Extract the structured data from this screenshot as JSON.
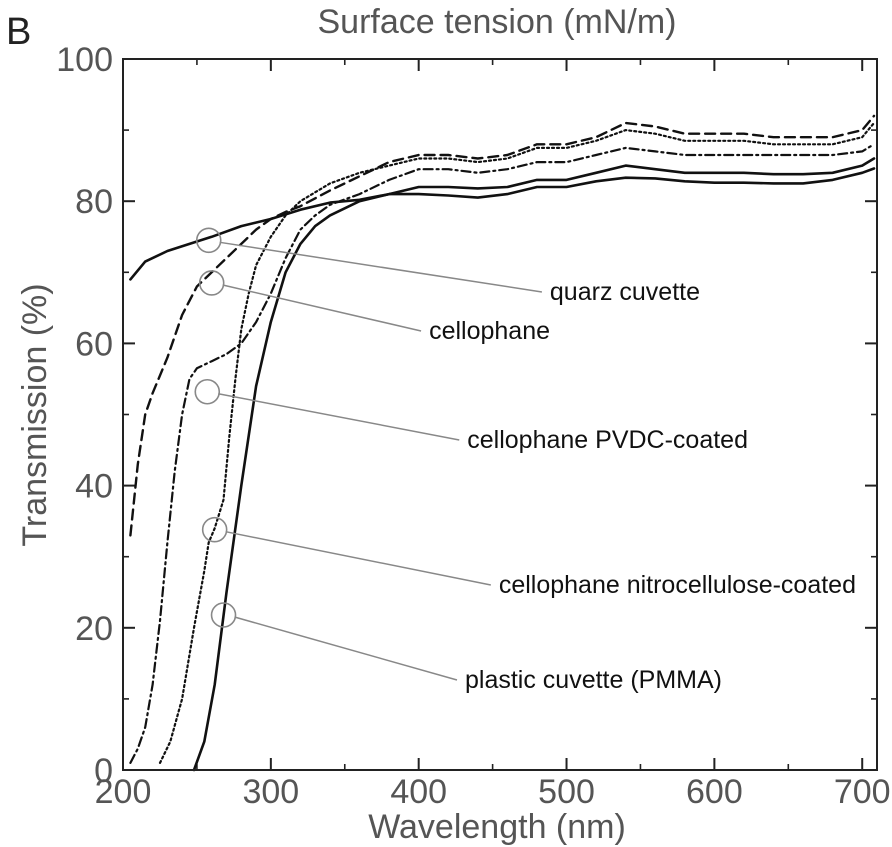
{
  "chart_data": {
    "type": "line",
    "panel_letter": "B",
    "title": "Surface tension (mN/m)",
    "xlabel": "Wavelength (nm)",
    "ylabel": "Transmission (%)",
    "xlim": [
      200,
      710
    ],
    "ylim": [
      0,
      100
    ],
    "x_ticks": [
      200,
      300,
      400,
      500,
      600,
      700
    ],
    "y_ticks": [
      0,
      20,
      40,
      60,
      80,
      100
    ],
    "grid": false,
    "series": [
      {
        "name": "quarz cuvette",
        "style": "solid",
        "stroke_width": 2.6,
        "points": [
          [
            205,
            69
          ],
          [
            215,
            71.5
          ],
          [
            230,
            73
          ],
          [
            245,
            74
          ],
          [
            260,
            75
          ],
          [
            280,
            76.5
          ],
          [
            300,
            77.5
          ],
          [
            320,
            78.8
          ],
          [
            340,
            79.8
          ],
          [
            360,
            80.2
          ],
          [
            380,
            81
          ],
          [
            400,
            81
          ],
          [
            420,
            80.8
          ],
          [
            440,
            80.5
          ],
          [
            460,
            81
          ],
          [
            480,
            82
          ],
          [
            500,
            82
          ],
          [
            520,
            82.8
          ],
          [
            540,
            83.3
          ],
          [
            560,
            83.2
          ],
          [
            580,
            82.8
          ],
          [
            600,
            82.6
          ],
          [
            620,
            82.6
          ],
          [
            640,
            82.5
          ],
          [
            660,
            82.5
          ],
          [
            680,
            83
          ],
          [
            700,
            84
          ],
          [
            708,
            84.6
          ]
        ]
      },
      {
        "name": "cellophane",
        "style": "dashed",
        "stroke_width": 2.4,
        "points": [
          [
            205,
            33
          ],
          [
            210,
            43
          ],
          [
            215,
            50
          ],
          [
            220,
            53
          ],
          [
            230,
            58
          ],
          [
            240,
            64
          ],
          [
            250,
            68
          ],
          [
            260,
            70
          ],
          [
            270,
            72
          ],
          [
            280,
            74
          ],
          [
            290,
            76
          ],
          [
            300,
            77.5
          ],
          [
            310,
            78.5
          ],
          [
            320,
            79.3
          ],
          [
            340,
            81.5
          ],
          [
            360,
            83.5
          ],
          [
            380,
            85.5
          ],
          [
            400,
            86.5
          ],
          [
            420,
            86.5
          ],
          [
            440,
            86
          ],
          [
            460,
            86.5
          ],
          [
            480,
            88
          ],
          [
            500,
            88
          ],
          [
            520,
            89
          ],
          [
            540,
            91
          ],
          [
            560,
            90.5
          ],
          [
            580,
            89.5
          ],
          [
            600,
            89.5
          ],
          [
            620,
            89.5
          ],
          [
            640,
            89
          ],
          [
            660,
            89
          ],
          [
            680,
            89
          ],
          [
            700,
            90
          ],
          [
            708,
            92
          ]
        ]
      },
      {
        "name": "cellophane PVDC-coated",
        "style": "dashdot",
        "stroke_width": 2.2,
        "points": [
          [
            205,
            1
          ],
          [
            210,
            3
          ],
          [
            215,
            6
          ],
          [
            220,
            12
          ],
          [
            225,
            21
          ],
          [
            230,
            32
          ],
          [
            235,
            42
          ],
          [
            240,
            50
          ],
          [
            245,
            55
          ],
          [
            250,
            56.5
          ],
          [
            260,
            57.5
          ],
          [
            270,
            58.5
          ],
          [
            280,
            60
          ],
          [
            290,
            63
          ],
          [
            300,
            67
          ],
          [
            310,
            72
          ],
          [
            320,
            76
          ],
          [
            330,
            78
          ],
          [
            340,
            79.5
          ],
          [
            360,
            81
          ],
          [
            380,
            83
          ],
          [
            400,
            84.5
          ],
          [
            420,
            84.5
          ],
          [
            440,
            84
          ],
          [
            460,
            84.5
          ],
          [
            480,
            85.5
          ],
          [
            500,
            85.5
          ],
          [
            520,
            86.5
          ],
          [
            540,
            87.5
          ],
          [
            560,
            87
          ],
          [
            580,
            86.5
          ],
          [
            600,
            86.5
          ],
          [
            620,
            86.5
          ],
          [
            640,
            86.5
          ],
          [
            660,
            86.5
          ],
          [
            680,
            86.5
          ],
          [
            700,
            87
          ],
          [
            708,
            88
          ]
        ]
      },
      {
        "name": "cellophane nitrocellulose-coated",
        "style": "dotted",
        "stroke_width": 2.2,
        "points": [
          [
            225,
            1
          ],
          [
            232,
            4
          ],
          [
            240,
            10
          ],
          [
            248,
            20
          ],
          [
            255,
            28
          ],
          [
            258,
            32
          ],
          [
            262,
            34
          ],
          [
            268,
            38
          ],
          [
            272,
            47
          ],
          [
            276,
            55
          ],
          [
            280,
            62
          ],
          [
            285,
            67
          ],
          [
            290,
            71
          ],
          [
            300,
            75
          ],
          [
            310,
            78
          ],
          [
            320,
            80
          ],
          [
            340,
            82.5
          ],
          [
            360,
            84
          ],
          [
            380,
            85
          ],
          [
            400,
            86
          ],
          [
            420,
            86
          ],
          [
            440,
            85.5
          ],
          [
            460,
            86
          ],
          [
            480,
            87.5
          ],
          [
            500,
            87.5
          ],
          [
            520,
            88.5
          ],
          [
            540,
            90
          ],
          [
            560,
            89.5
          ],
          [
            580,
            88.5
          ],
          [
            600,
            88.5
          ],
          [
            620,
            88.5
          ],
          [
            640,
            88
          ],
          [
            660,
            88
          ],
          [
            680,
            88
          ],
          [
            700,
            89
          ],
          [
            708,
            91
          ]
        ]
      },
      {
        "name": "plastic cuvette (PMMA)",
        "style": "solid",
        "stroke_width": 2.6,
        "points": [
          [
            248,
            0
          ],
          [
            255,
            4
          ],
          [
            262,
            12
          ],
          [
            270,
            25
          ],
          [
            280,
            40
          ],
          [
            290,
            54
          ],
          [
            300,
            63
          ],
          [
            310,
            70
          ],
          [
            320,
            74
          ],
          [
            330,
            76.5
          ],
          [
            340,
            78
          ],
          [
            360,
            80
          ],
          [
            380,
            81
          ],
          [
            400,
            82
          ],
          [
            420,
            82
          ],
          [
            440,
            81.8
          ],
          [
            460,
            82
          ],
          [
            480,
            83
          ],
          [
            500,
            83
          ],
          [
            520,
            84
          ],
          [
            540,
            85
          ],
          [
            560,
            84.5
          ],
          [
            580,
            84
          ],
          [
            600,
            84
          ],
          [
            620,
            84
          ],
          [
            640,
            83.8
          ],
          [
            660,
            83.8
          ],
          [
            680,
            84
          ],
          [
            700,
            85
          ],
          [
            708,
            86
          ]
        ]
      }
    ],
    "annotations": [
      {
        "series": "quarz cuvette",
        "text": "quarz cuvette",
        "marker": [
          258,
          74.5
        ],
        "label_anchor": [
          700,
          291
        ]
      },
      {
        "series": "cellophane",
        "text": "cellophane",
        "marker": [
          260,
          68.5
        ],
        "label_anchor": [
          550,
          330
        ]
      },
      {
        "series": "cellophane PVDC-coated",
        "text": "cellophane PVDC-coated",
        "marker": [
          257,
          53.2
        ],
        "label_anchor": [
          748,
          439
        ]
      },
      {
        "series": "cellophane nitrocellulose-coated",
        "text": "cellophane nitrocellulose-coated",
        "marker": [
          262,
          33.8
        ],
        "label_anchor": [
          856,
          584
        ]
      },
      {
        "series": "plastic cuvette (PMMA)",
        "text": "plastic cuvette (PMMA)",
        "marker": [
          268,
          21.8
        ],
        "label_anchor": [
          722,
          679
        ]
      }
    ]
  }
}
